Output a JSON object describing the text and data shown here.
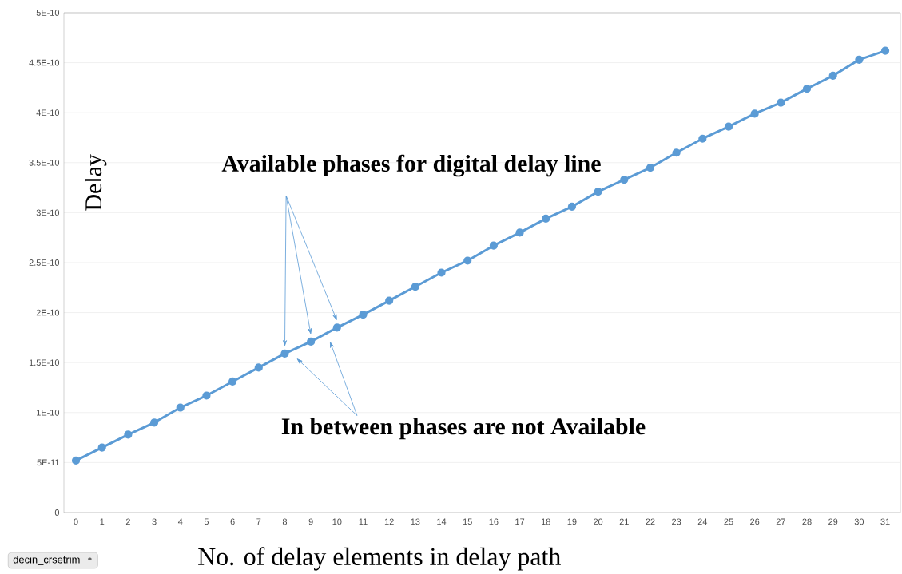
{
  "chart_data": {
    "type": "line",
    "xlabel": "No. of delay elements in delay path",
    "ylabel": "Delay",
    "categories": [
      "0",
      "1",
      "2",
      "3",
      "4",
      "5",
      "6",
      "7",
      "8",
      "9",
      "10",
      "11",
      "12",
      "13",
      "14",
      "15",
      "16",
      "17",
      "18",
      "19",
      "20",
      "21",
      "22",
      "23",
      "24",
      "25",
      "26",
      "27",
      "28",
      "29",
      "30",
      "31"
    ],
    "series": [
      {
        "color": "#5b9bd5",
        "values": [
          5.2e-11,
          6.5e-11,
          7.8e-11,
          9e-11,
          1.05e-10,
          1.17e-10,
          1.31e-10,
          1.45e-10,
          1.59e-10,
          1.71e-10,
          1.85e-10,
          1.98e-10,
          2.12e-10,
          2.26e-10,
          2.4e-10,
          2.52e-10,
          2.67e-10,
          2.8e-10,
          2.94e-10,
          3.06e-10,
          3.21e-10,
          3.33e-10,
          3.45e-10,
          3.6e-10,
          3.74e-10,
          3.86e-10,
          3.99e-10,
          4.1e-10,
          4.24e-10,
          4.37e-10,
          4.53e-10,
          4.62e-10
        ]
      }
    ],
    "ylim": [
      0,
      5e-10
    ],
    "yticks": [
      {
        "value": 0,
        "label": "0"
      },
      {
        "value": 5e-11,
        "label": "5E-11"
      },
      {
        "value": 1e-10,
        "label": "1E-10"
      },
      {
        "value": 1.5e-10,
        "label": "1.5E-10"
      },
      {
        "value": 2e-10,
        "label": "2E-10"
      },
      {
        "value": 2.5e-10,
        "label": "2.5E-10"
      },
      {
        "value": 3e-10,
        "label": "3E-10"
      },
      {
        "value": 3.5e-10,
        "label": "3.5E-10"
      },
      {
        "value": 4e-10,
        "label": "4E-10"
      },
      {
        "value": 4.5e-10,
        "label": "4.5E-10"
      },
      {
        "value": 5e-10,
        "label": "5E-10"
      }
    ],
    "grid": "y",
    "marker": "circle",
    "line_style": "solid",
    "annotations": [
      "Available phases for digital delay line",
      "In between phases are not Available",
      "decin_crsetrim"
    ]
  }
}
